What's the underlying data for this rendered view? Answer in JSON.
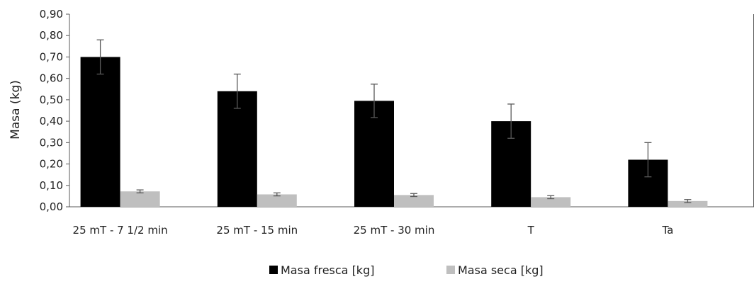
{
  "chart_data": {
    "type": "bar",
    "ylabel": "Masa (kg)",
    "ylim": [
      0,
      0.9
    ],
    "y_ticks": [
      "0,00",
      "0,10",
      "0,20",
      "0,30",
      "0,40",
      "0,50",
      "0,60",
      "0,70",
      "0,80",
      "0,90"
    ],
    "grid": false,
    "legend_position": "bottom",
    "categories": [
      "25 mT - 7 1/2 min",
      "25 mT - 15 min",
      "25 mT - 30 min",
      "T",
      "Ta"
    ],
    "series": [
      {
        "name": "Masa fresca [kg]",
        "color": "#000000",
        "values": [
          0.7,
          0.54,
          0.495,
          0.4,
          0.22
        ],
        "error": [
          0.08,
          0.08,
          0.078,
          0.08,
          0.08
        ]
      },
      {
        "name": "Masa seca [kg]",
        "color": "#bfbfbf",
        "values": [
          0.072,
          0.058,
          0.055,
          0.045,
          0.027
        ],
        "error": [
          0.007,
          0.007,
          0.007,
          0.007,
          0.007
        ]
      }
    ]
  }
}
